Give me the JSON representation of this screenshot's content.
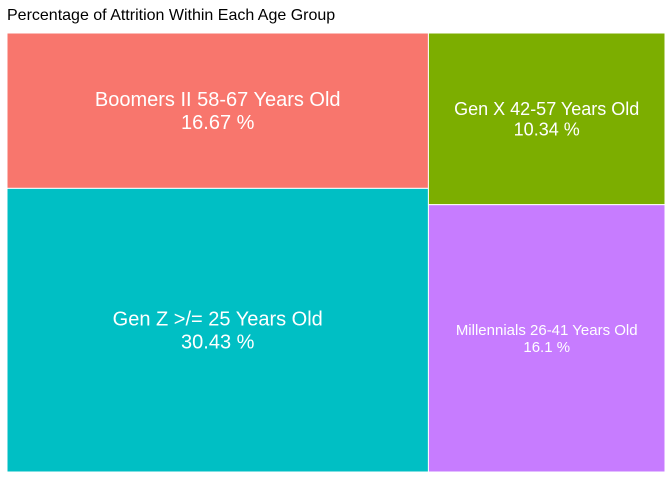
{
  "chart_data": {
    "type": "treemap",
    "title": "Percentage of Attrition Within Each Age Group",
    "unit": "%",
    "tiles": [
      {
        "label": "Gen Z >/= 25 Years Old",
        "value": 30.43,
        "value_text": "30.43 %",
        "color": "#00BFC4"
      },
      {
        "label": "Boomers II 58-67 Years Old",
        "value": 16.67,
        "value_text": "16.67 %",
        "color": "#F8766D"
      },
      {
        "label": "Millennials 26-41 Years Old",
        "value": 16.1,
        "value_text": "16.1 %",
        "color": "#C77CFF"
      },
      {
        "label": "Gen X 42-57 Years Old",
        "value": 10.34,
        "value_text": "10.34 %",
        "color": "#7CAE00"
      }
    ]
  }
}
